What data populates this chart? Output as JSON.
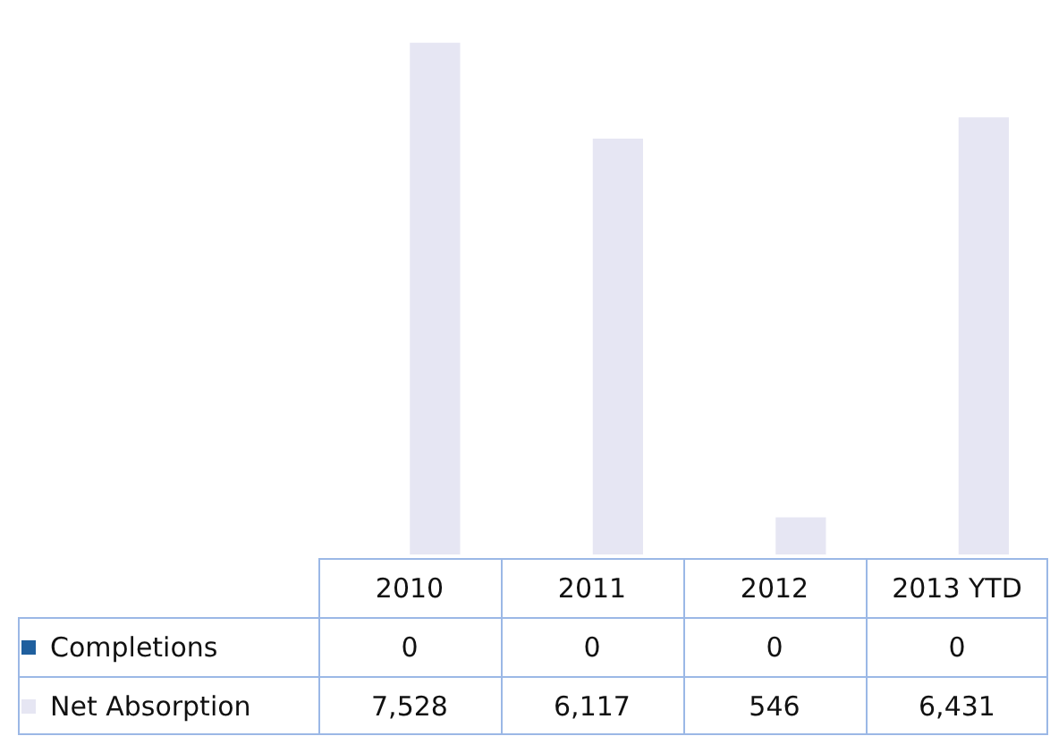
{
  "chart_data": {
    "type": "bar",
    "categories": [
      "2010",
      "2011",
      "2012",
      "2013 YTD"
    ],
    "series": [
      {
        "name": "Completions",
        "color": "#1f5f9e",
        "values": [
          0,
          0,
          0,
          0
        ],
        "value_labels": [
          "0",
          "0",
          "0",
          "0"
        ]
      },
      {
        "name": "Net Absorption",
        "color": "#e6e6f3",
        "values": [
          7528,
          6117,
          546,
          6431
        ],
        "value_labels": [
          "7,528",
          "6,117",
          "546",
          "6,431"
        ]
      }
    ],
    "legend": "bottom"
  }
}
